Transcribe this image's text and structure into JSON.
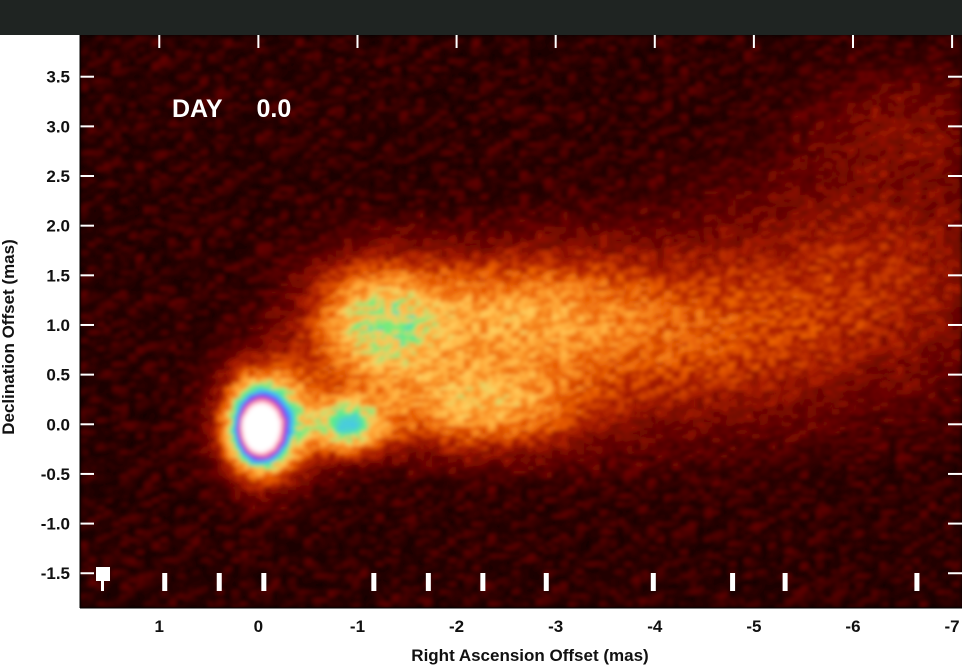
{
  "chart_data": {
    "type": "heatmap",
    "annotation_label": "DAY",
    "annotation_value": "0.0",
    "xlabel": "Right Ascension Offset (mas)",
    "ylabel": "Declination Offset (mas)",
    "xlim": [
      1.8,
      -7.1
    ],
    "ylim": [
      -1.85,
      3.92
    ],
    "x_ticks": [
      1,
      0,
      -1,
      -2,
      -3,
      -4,
      -5,
      -6,
      -7
    ],
    "x_tick_labels": [
      "1",
      "0",
      "-1",
      "-2",
      "-3",
      "-4",
      "-5",
      "-6",
      "-7"
    ],
    "y_ticks": [
      3.5,
      3.0,
      2.5,
      2.0,
      1.5,
      1.0,
      0.5,
      0.0,
      -0.5,
      -1.0,
      -1.5
    ],
    "y_tick_labels": [
      "3.5",
      "3.0",
      "2.5",
      "2.0",
      "1.5",
      "1.0",
      "0.5",
      "0.0",
      "-0.5",
      "-1.0",
      "-1.5"
    ],
    "colormap": [
      "#000000",
      "#5a0000",
      "#a81a00",
      "#e85a00",
      "#ffa030",
      "#ffd060",
      "#60f080",
      "#40c0ff",
      "#6040ff",
      "#ff6090",
      "#ffffff"
    ],
    "components": [
      {
        "x": 0.0,
        "y": -0.05,
        "sx": 0.16,
        "sy": 0.22,
        "amp": 1.0
      },
      {
        "x": -0.1,
        "y": 0.05,
        "sx": 0.3,
        "sy": 0.35,
        "amp": 0.55
      },
      {
        "x": -0.9,
        "y": 0.0,
        "sx": 0.25,
        "sy": 0.18,
        "amp": 0.5
      },
      {
        "x": -1.2,
        "y": 1.0,
        "sx": 0.45,
        "sy": 0.4,
        "amp": 0.38
      },
      {
        "x": -2.2,
        "y": 0.2,
        "sx": 0.7,
        "sy": 0.3,
        "amp": 0.3
      },
      {
        "x": -2.5,
        "y": 1.1,
        "sx": 0.9,
        "sy": 0.4,
        "amp": 0.24
      },
      {
        "x": -4.2,
        "y": 0.9,
        "sx": 1.3,
        "sy": 0.6,
        "amp": 0.16
      },
      {
        "x": -6.2,
        "y": 1.6,
        "sx": 1.0,
        "sy": 0.7,
        "amp": 0.1
      },
      {
        "x": -6.5,
        "y": 3.0,
        "sx": 0.6,
        "sy": 0.4,
        "amp": 0.06
      }
    ],
    "epoch_markers_x": [
      0.95,
      0.4,
      -0.05,
      -1.16,
      -1.71,
      -2.26,
      -2.9,
      -3.98,
      -4.78,
      -5.31,
      -6.64
    ],
    "background": "#000000",
    "tick_color": "#ffffff"
  }
}
